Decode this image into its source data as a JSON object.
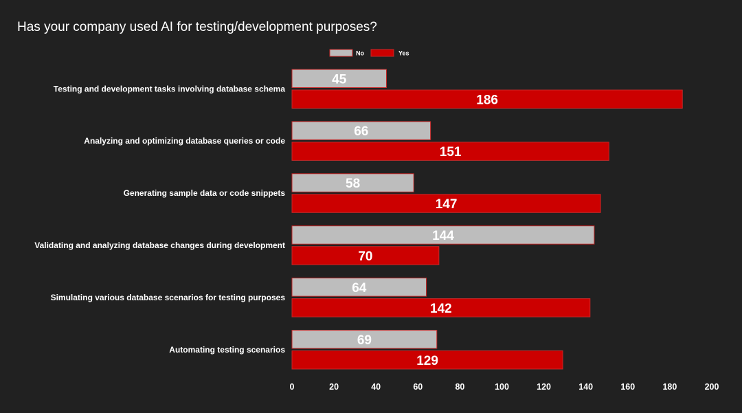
{
  "page": {
    "background": "#212121"
  },
  "chart_data": {
    "type": "bar",
    "orientation": "horizontal",
    "title": "Has your company used AI for testing/development purposes?",
    "categories": [
      "Testing and development tasks involving database schema",
      "Analyzing and optimizing database queries or code",
      "Generating sample data or code snippets",
      "Validating and analyzing database changes during development",
      "Simulating various database scenarios for testing purposes",
      "Automating testing scenarios"
    ],
    "series": [
      {
        "name": "No",
        "color": "#bdbdbd",
        "border": "#c62828",
        "values": [
          45,
          66,
          58,
          144,
          64,
          69
        ]
      },
      {
        "name": "Yes",
        "color": "#cc0000",
        "border": "#c62828",
        "values": [
          186,
          151,
          147,
          70,
          142,
          129
        ]
      }
    ],
    "xlim": [
      0,
      200
    ],
    "xticks": [
      0,
      20,
      40,
      60,
      80,
      100,
      120,
      140,
      160,
      180,
      200
    ],
    "xlabel": "",
    "ylabel": "",
    "data_labels": true,
    "legend_position": "top",
    "grid": false
  }
}
